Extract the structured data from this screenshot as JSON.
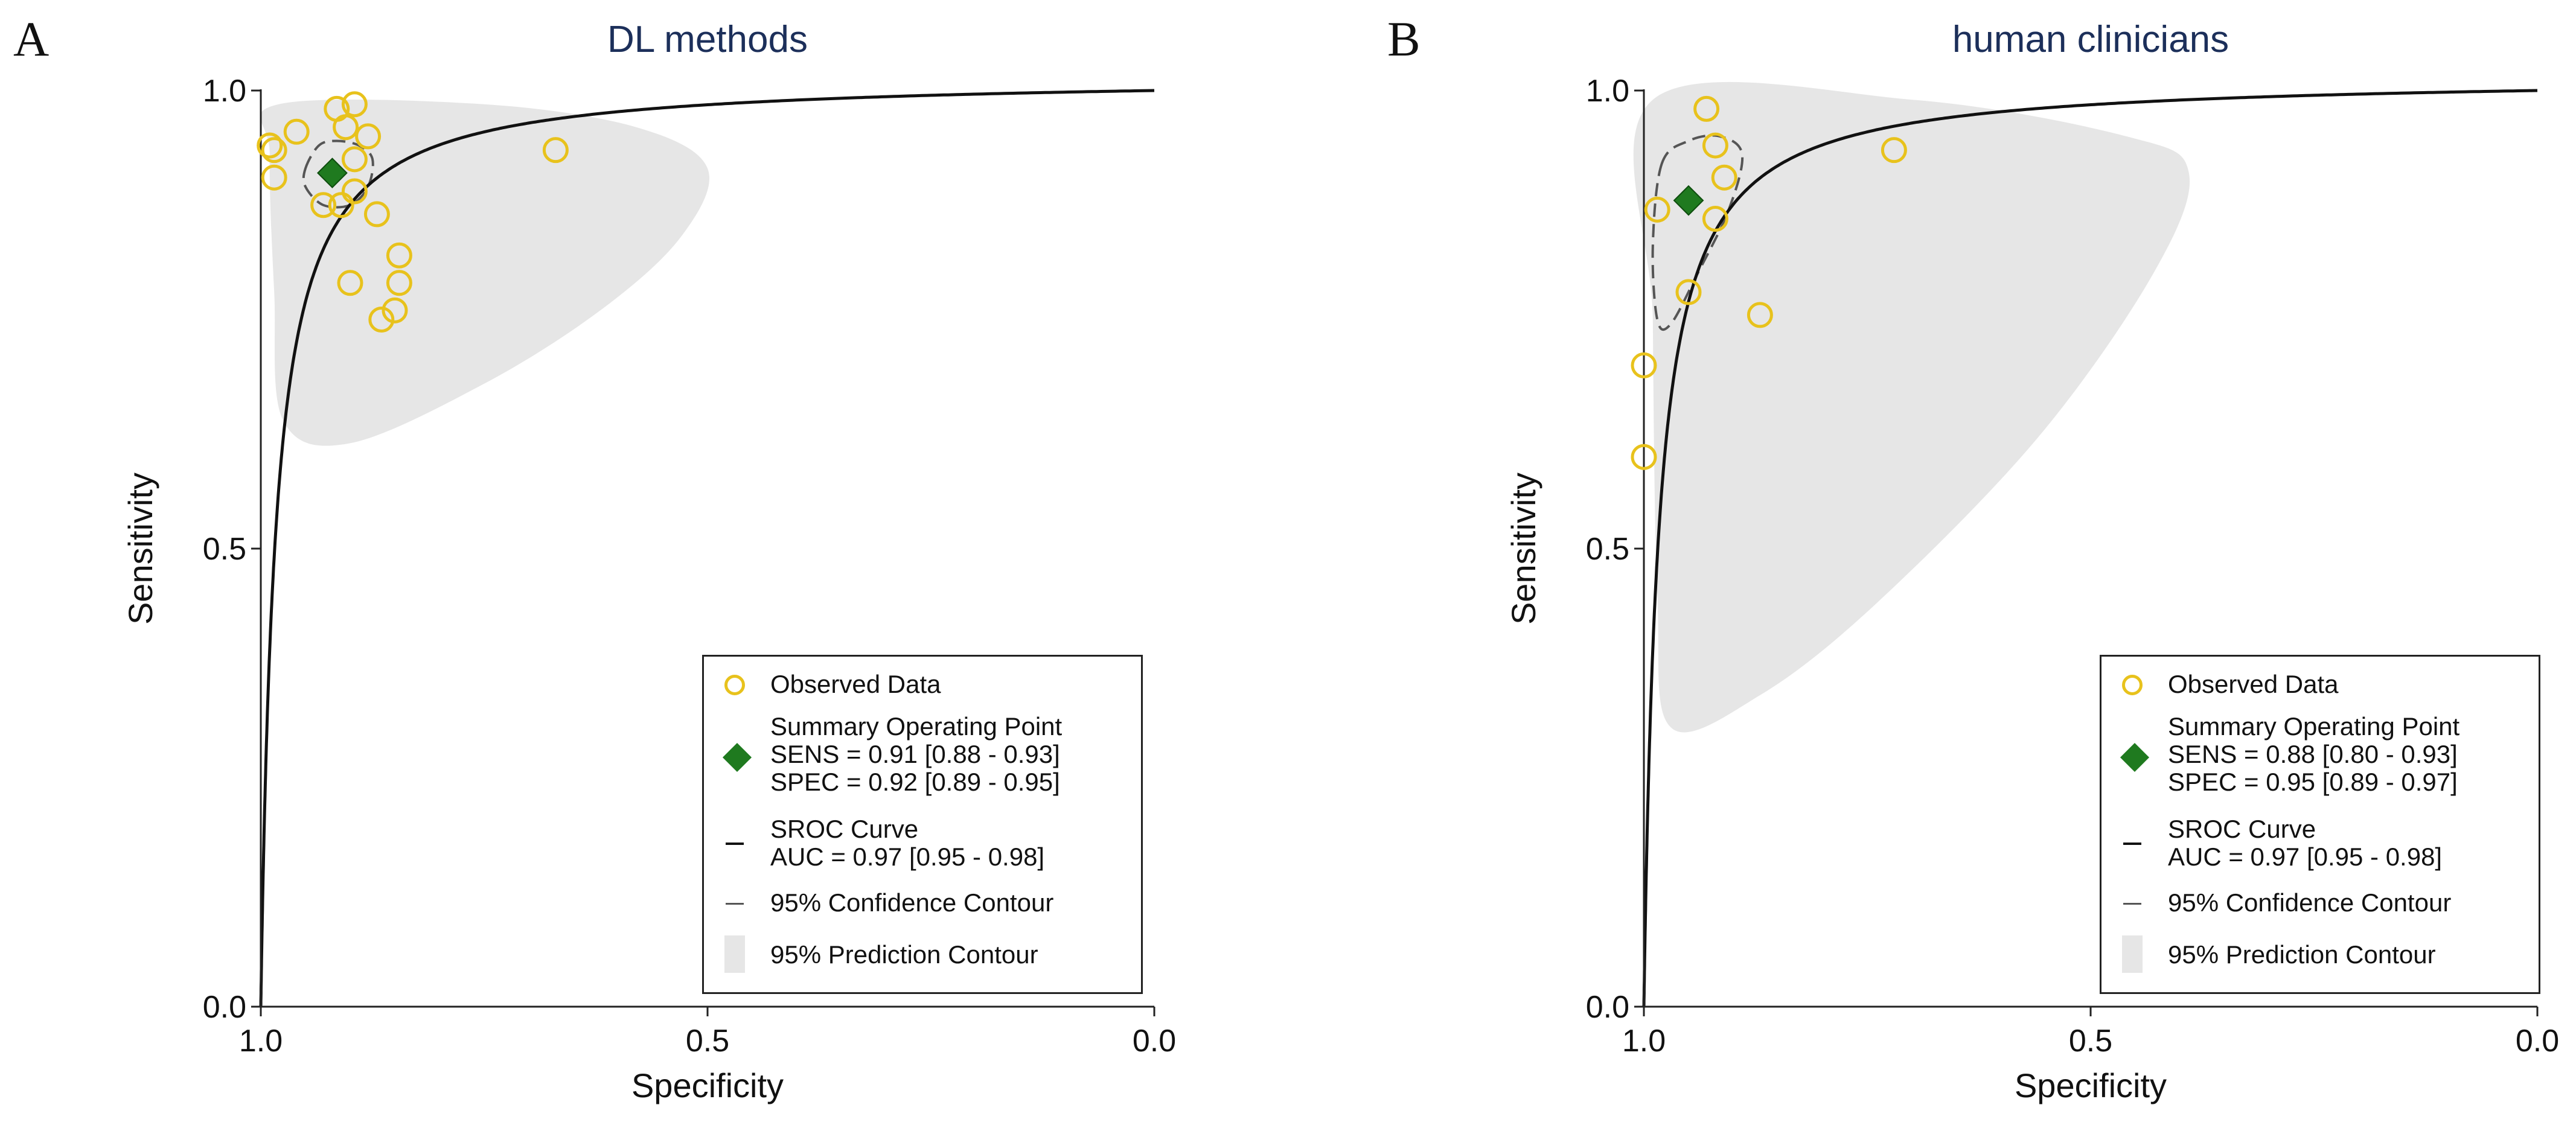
{
  "chart_data": [
    {
      "type": "scatter",
      "panel_label": "A",
      "title": "DL methods",
      "xlabel": "Specificity",
      "ylabel": "Sensitivity",
      "xlim": [
        1.0,
        0.0
      ],
      "ylim": [
        0.0,
        1.0
      ],
      "xticks": [
        "1.0",
        "0.5",
        "0.0"
      ],
      "yticks": [
        "0.0",
        "0.5",
        "1.0"
      ],
      "observed": [
        {
          "spec": 0.99,
          "sens": 0.94
        },
        {
          "spec": 0.985,
          "sens": 0.935
        },
        {
          "spec": 0.99,
          "sens": 0.94
        },
        {
          "spec": 0.96,
          "sens": 0.955
        },
        {
          "spec": 0.915,
          "sens": 0.98
        },
        {
          "spec": 0.895,
          "sens": 0.985
        },
        {
          "spec": 0.88,
          "sens": 0.95
        },
        {
          "spec": 0.905,
          "sens": 0.96
        },
        {
          "spec": 0.985,
          "sens": 0.905
        },
        {
          "spec": 0.895,
          "sens": 0.925
        },
        {
          "spec": 0.895,
          "sens": 0.89
        },
        {
          "spec": 0.93,
          "sens": 0.875
        },
        {
          "spec": 0.91,
          "sens": 0.875
        },
        {
          "spec": 0.87,
          "sens": 0.865
        },
        {
          "spec": 0.845,
          "sens": 0.82
        },
        {
          "spec": 0.845,
          "sens": 0.79
        },
        {
          "spec": 0.85,
          "sens": 0.76
        },
        {
          "spec": 0.9,
          "sens": 0.79
        },
        {
          "spec": 0.865,
          "sens": 0.75
        },
        {
          "spec": 0.67,
          "sens": 0.935
        }
      ],
      "summary": {
        "sens": 0.91,
        "spec": 0.92
      },
      "sroc_auc": 0.97,
      "confidence_contour": [
        [
          0.95,
          0.915
        ],
        [
          0.935,
          0.94
        ],
        [
          0.915,
          0.945
        ],
        [
          0.89,
          0.94
        ],
        [
          0.875,
          0.925
        ],
        [
          0.88,
          0.895
        ],
        [
          0.9,
          0.875
        ],
        [
          0.93,
          0.875
        ],
        [
          0.95,
          0.895
        ]
      ],
      "prediction_contour": [
        [
          0.98,
          0.985
        ],
        [
          0.75,
          0.985
        ],
        [
          0.58,
          0.96
        ],
        [
          0.5,
          0.915
        ],
        [
          0.53,
          0.84
        ],
        [
          0.62,
          0.76
        ],
        [
          0.75,
          0.68
        ],
        [
          0.9,
          0.615
        ],
        [
          0.975,
          0.64
        ],
        [
          0.985,
          0.78
        ],
        [
          0.99,
          0.93
        ]
      ],
      "legend": {
        "observed": "Observed Data",
        "summary_title": "Summary Operating Point",
        "sens": "SENS = 0.91 [0.88 - 0.93]",
        "spec": "SPEC = 0.92 [0.89 - 0.95]",
        "sroc": "SROC Curve",
        "auc": "AUC = 0.97 [0.95 - 0.98]",
        "confidence": "95% Confidence Contour",
        "prediction": "95% Prediction Contour"
      }
    },
    {
      "type": "scatter",
      "panel_label": "B",
      "title": "human clinicians",
      "xlabel": "Specificity",
      "ylabel": "Sensitivity",
      "xlim": [
        1.0,
        0.0
      ],
      "ylim": [
        0.0,
        1.0
      ],
      "xticks": [
        "1.0",
        "0.5",
        "0.0"
      ],
      "yticks": [
        "0.0",
        "0.5",
        "1.0"
      ],
      "observed": [
        {
          "spec": 0.93,
          "sens": 0.98
        },
        {
          "spec": 0.92,
          "sens": 0.94
        },
        {
          "spec": 0.91,
          "sens": 0.905
        },
        {
          "spec": 0.985,
          "sens": 0.87
        },
        {
          "spec": 0.92,
          "sens": 0.86
        },
        {
          "spec": 0.95,
          "sens": 0.78
        },
        {
          "spec": 0.87,
          "sens": 0.755
        },
        {
          "spec": 0.72,
          "sens": 0.935
        },
        {
          "spec": 1.0,
          "sens": 0.7
        },
        {
          "spec": 1.0,
          "sens": 0.6
        }
      ],
      "summary": {
        "sens": 0.88,
        "spec": 0.95
      },
      "sroc_auc": 0.97,
      "confidence_contour": [
        [
          0.98,
          0.92
        ],
        [
          0.95,
          0.945
        ],
        [
          0.915,
          0.95
        ],
        [
          0.89,
          0.93
        ],
        [
          0.905,
          0.87
        ],
        [
          0.94,
          0.8
        ],
        [
          0.97,
          0.745
        ],
        [
          0.985,
          0.75
        ],
        [
          0.99,
          0.83
        ]
      ],
      "prediction_contour": [
        [
          0.99,
          0.99
        ],
        [
          0.7,
          0.99
        ],
        [
          0.46,
          0.95
        ],
        [
          0.39,
          0.91
        ],
        [
          0.43,
          0.8
        ],
        [
          0.56,
          0.62
        ],
        [
          0.74,
          0.44
        ],
        [
          0.87,
          0.34
        ],
        [
          0.97,
          0.305
        ],
        [
          0.985,
          0.45
        ],
        [
          0.99,
          0.75
        ]
      ],
      "legend": {
        "observed": "Observed Data",
        "summary_title": "Summary Operating Point",
        "sens": "SENS = 0.88 [0.80 - 0.93]",
        "spec": "SPEC = 0.95 [0.89 - 0.97]",
        "sroc": "SROC Curve",
        "auc": "AUC = 0.97 [0.95 - 0.98]",
        "confidence": "95% Confidence Contour",
        "prediction": "95% Prediction Contour"
      }
    }
  ]
}
